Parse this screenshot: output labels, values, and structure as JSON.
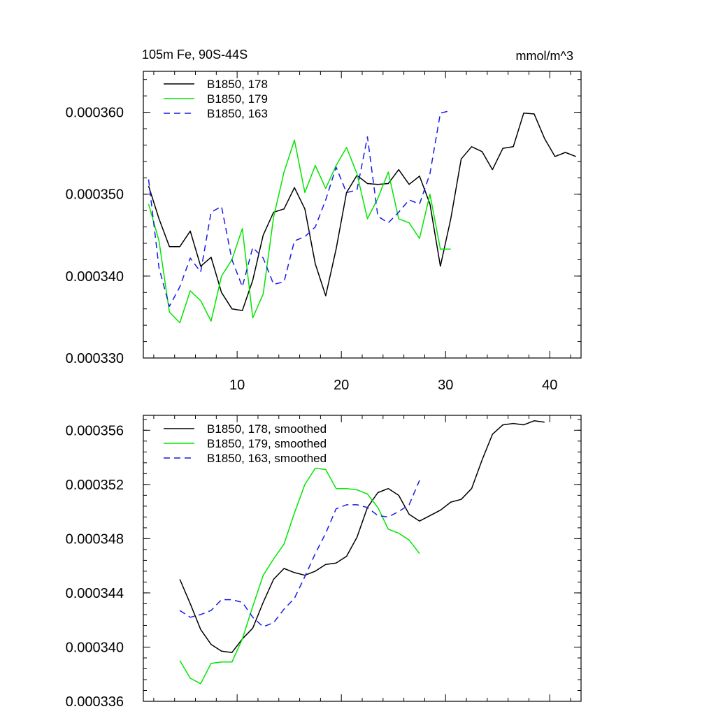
{
  "chart_data": [
    {
      "type": "line",
      "title_left": "105m Fe, 90S-44S",
      "title_right": "mmol/m^3",
      "xlim": [
        1,
        43
      ],
      "ylim": [
        0.00033,
        0.000365
      ],
      "xticks": [
        10,
        20,
        30,
        40
      ],
      "xtick_labels": [
        "10",
        "20",
        "30",
        "40"
      ],
      "yticks": [
        0.00033,
        0.00034,
        0.00035,
        0.00036
      ],
      "ytick_labels": [
        "0.000330",
        "0.000340",
        "0.000350",
        "0.000360"
      ],
      "legend_position": "top-left",
      "series": [
        {
          "name": "B1850, 178",
          "color": "#000000",
          "dash": "solid",
          "x": [
            1.5,
            2.5,
            3.5,
            4.5,
            5.5,
            6.5,
            7.5,
            8.5,
            9.5,
            10.5,
            11.5,
            12.5,
            13.5,
            14.5,
            15.5,
            16.5,
            17.5,
            18.5,
            19.5,
            20.5,
            21.5,
            22.5,
            23.5,
            24.5,
            25.5,
            26.5,
            27.5,
            28.5,
            29.5,
            30.5,
            31.5,
            32.5,
            33.5,
            34.5,
            35.5,
            36.5,
            37.5,
            38.5,
            39.5,
            40.5,
            41.5,
            42.5
          ],
          "values": [
            0.000351,
            0.000347,
            0.0003436,
            0.0003436,
            0.0003455,
            0.0003412,
            0.0003423,
            0.000338,
            0.000336,
            0.0003358,
            0.0003395,
            0.000345,
            0.0003478,
            0.0003482,
            0.0003508,
            0.0003482,
            0.0003415,
            0.0003376,
            0.0003433,
            0.0003502,
            0.0003523,
            0.0003513,
            0.0003512,
            0.0003513,
            0.000353,
            0.0003512,
            0.0003522,
            0.0003488,
            0.0003412,
            0.000347,
            0.0003543,
            0.0003558,
            0.0003552,
            0.000353,
            0.0003556,
            0.0003558,
            0.0003599,
            0.0003598,
            0.0003568,
            0.0003546,
            0.0003551,
            0.0003546
          ]
        },
        {
          "name": "B1850, 179",
          "color": "#00e600",
          "dash": "solid",
          "x": [
            1.5,
            2.5,
            3.5,
            4.5,
            5.5,
            6.5,
            7.5,
            8.5,
            9.5,
            10.5,
            11.5,
            12.5,
            13.5,
            14.5,
            15.5,
            16.5,
            17.5,
            18.5,
            19.5,
            20.5,
            21.5,
            22.5,
            23.5,
            24.5,
            25.5,
            26.5,
            27.5,
            28.5,
            29.5,
            30.5
          ],
          "values": [
            0.0003488,
            0.0003443,
            0.0003356,
            0.0003343,
            0.0003382,
            0.000337,
            0.0003345,
            0.00034,
            0.000342,
            0.0003458,
            0.0003349,
            0.0003378,
            0.0003472,
            0.0003527,
            0.0003566,
            0.0003502,
            0.0003535,
            0.0003507,
            0.0003535,
            0.0003557,
            0.0003525,
            0.000347,
            0.0003495,
            0.0003527,
            0.000347,
            0.0003465,
            0.0003446,
            0.00035,
            0.0003433,
            0.0003433
          ]
        },
        {
          "name": "B1850, 163",
          "color": "#1a1ae6",
          "dash": "dashed",
          "x": [
            1.5,
            2.5,
            3.5,
            4.5,
            5.5,
            6.5,
            7.5,
            8.5,
            9.5,
            10.5,
            11.5,
            12.5,
            13.5,
            14.5,
            15.5,
            16.5,
            17.5,
            18.5,
            19.5,
            20.5,
            21.5,
            22.5,
            23.5,
            24.5,
            25.5,
            26.5,
            27.5,
            28.5,
            29.5,
            30.5
          ],
          "values": [
            0.0003518,
            0.000341,
            0.0003363,
            0.0003387,
            0.0003422,
            0.0003405,
            0.0003478,
            0.0003485,
            0.000342,
            0.0003387,
            0.0003435,
            0.0003422,
            0.000339,
            0.0003393,
            0.0003443,
            0.0003448,
            0.000346,
            0.0003493,
            0.0003533,
            0.0003502,
            0.0003505,
            0.000357,
            0.0003473,
            0.0003465,
            0.0003478,
            0.0003493,
            0.0003488,
            0.0003525,
            0.0003599,
            0.0003602
          ]
        }
      ]
    },
    {
      "type": "line",
      "xlim": [
        1,
        43
      ],
      "ylim": [
        0.000336,
        0.0003571
      ],
      "xticks": [
        10,
        20,
        30,
        40
      ],
      "yticks": [
        0.000336,
        0.00034,
        0.000344,
        0.000348,
        0.000352,
        0.000356
      ],
      "ytick_labels": [
        "0.000336",
        "0.000340",
        "0.000344",
        "0.000348",
        "0.000352",
        "0.000356"
      ],
      "legend_position": "top-left",
      "series": [
        {
          "name": "B1850, 178, smoothed",
          "color": "#000000",
          "dash": "solid",
          "x": [
            4.5,
            5.5,
            6.5,
            7.5,
            8.5,
            9.5,
            10.5,
            11.5,
            12.5,
            13.5,
            14.5,
            15.5,
            16.5,
            17.5,
            18.5,
            19.5,
            20.5,
            21.5,
            22.5,
            23.5,
            24.5,
            25.5,
            26.5,
            27.5,
            28.5,
            29.5,
            30.5,
            31.5,
            32.5,
            33.5,
            34.5,
            35.5,
            36.5,
            37.5,
            38.5,
            39.5
          ],
          "values": [
            0.000345,
            0.0003432,
            0.0003413,
            0.0003402,
            0.0003397,
            0.0003396,
            0.0003406,
            0.0003414,
            0.0003433,
            0.000345,
            0.0003458,
            0.0003455,
            0.0003453,
            0.0003456,
            0.0003461,
            0.0003462,
            0.0003467,
            0.0003481,
            0.0003503,
            0.0003514,
            0.0003517,
            0.0003512,
            0.0003498,
            0.0003493,
            0.0003497,
            0.0003501,
            0.0003507,
            0.0003509,
            0.0003517,
            0.0003538,
            0.0003557,
            0.0003564,
            0.0003565,
            0.0003564,
            0.0003567,
            0.0003566
          ]
        },
        {
          "name": "B1850, 179, smoothed",
          "color": "#00e600",
          "dash": "solid",
          "x": [
            4.5,
            5.5,
            6.5,
            7.5,
            8.5,
            9.5,
            10.5,
            11.5,
            12.5,
            13.5,
            14.5,
            15.5,
            16.5,
            17.5,
            18.5,
            19.5,
            20.5,
            21.5,
            22.5,
            23.5,
            24.5,
            25.5,
            26.5,
            27.5
          ],
          "values": [
            0.000339,
            0.0003377,
            0.0003373,
            0.0003388,
            0.0003389,
            0.0003389,
            0.0003406,
            0.000343,
            0.0003453,
            0.0003465,
            0.0003476,
            0.0003499,
            0.000352,
            0.0003532,
            0.0003531,
            0.0003517,
            0.0003517,
            0.0003516,
            0.0003513,
            0.0003503,
            0.0003487,
            0.0003484,
            0.0003479,
            0.0003469
          ]
        },
        {
          "name": "B1850, 163, smoothed",
          "color": "#1a1ae6",
          "dash": "dashed",
          "x": [
            4.5,
            5.5,
            6.5,
            7.5,
            8.5,
            9.5,
            10.5,
            11.5,
            12.5,
            13.5,
            14.5,
            15.5,
            16.5,
            17.5,
            18.5,
            19.5,
            20.5,
            21.5,
            22.5,
            23.5,
            24.5,
            25.5,
            26.5,
            27.5
          ],
          "values": [
            0.0003427,
            0.0003422,
            0.0003424,
            0.0003427,
            0.0003435,
            0.0003435,
            0.0003433,
            0.0003422,
            0.0003415,
            0.0003418,
            0.0003428,
            0.0003436,
            0.0003452,
            0.0003469,
            0.0003484,
            0.0003502,
            0.0003505,
            0.0003505,
            0.0003503,
            0.0003497,
            0.0003496,
            0.00035,
            0.0003505,
            0.0003523
          ]
        }
      ]
    }
  ]
}
